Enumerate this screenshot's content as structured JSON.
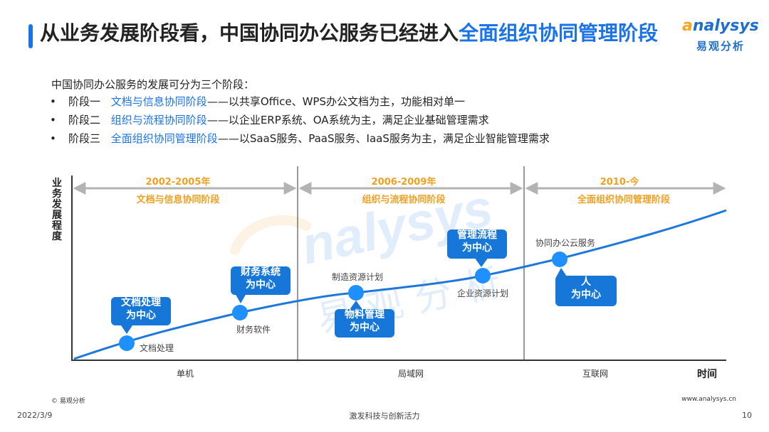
{
  "header": {
    "title_main": "从业务发展阶段看，中国协同办公服务已经进入",
    "title_highlight": "全面组织协同管理阶段",
    "logo_word_a": "a",
    "logo_word_rest": "nalysys",
    "logo_cn": "易观分析"
  },
  "intro": "中国协同办公服务的发展可分为三个阶段：",
  "stages": [
    {
      "bullet": "•",
      "label": "阶段一",
      "keyword": "文档与信息协同阶段",
      "desc": "——以共享Office、WPS办公文档为主，功能相对单一"
    },
    {
      "bullet": "•",
      "label": "阶段二",
      "keyword": "组织与流程协同阶段",
      "desc": "——以企业ERP系统、OA系统为主，满足企业基础管理需求"
    },
    {
      "bullet": "•",
      "label": "阶段三",
      "keyword": "全面组织协同管理阶段",
      "desc": "——以SaaS服务、PaaS服务、IaaS服务为主，满足企业智能管理需求"
    }
  ],
  "diagram": {
    "y_axis_label": "业务发展程度",
    "x_axis_label": "时间",
    "periods": [
      {
        "years": "2002-2005年",
        "name": "文档与信息协同阶段",
        "network": "单机"
      },
      {
        "years": "2006-2009年",
        "name": "组织与流程协同阶段",
        "network": "局域网"
      },
      {
        "years": "2010-今",
        "name": "全面组织协同管理阶段",
        "network": "互联网"
      }
    ],
    "callouts": [
      "文档处理\n为中心",
      "财务系统\n为中心",
      "物料管理\n为中心",
      "管理流程\n为中心",
      "人\n为中心"
    ],
    "point_labels": [
      "文档处理",
      "财务软件",
      "制造资源计划",
      "企业资源计划",
      "协同办公云服务"
    ],
    "colors": {
      "accent": "#1a73e8",
      "callout": "#1677d8",
      "curve": "#1e78dc",
      "point": "#1e90ff",
      "arrow": "#b3b3b3",
      "years": "#f0a020"
    }
  },
  "footer": {
    "copyright": "© 易观分析",
    "website": "www.analysys.cn",
    "date": "2022/3/9",
    "slogan": "激发科技与创新活力",
    "page": "10"
  }
}
